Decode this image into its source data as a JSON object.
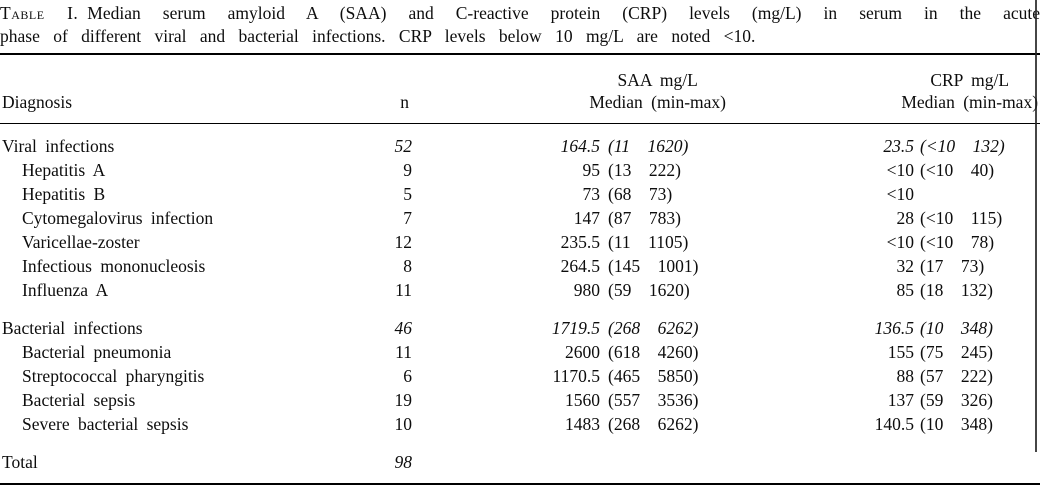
{
  "caption": {
    "label": "Table I.",
    "line1_rest": "Median serum amyloid A (SAA) and C-reactive protein (CRP) levels (mg/L) in serum in the acute",
    "line2": "phase of different viral and bacterial infections. CRP levels below 10 mg/L are noted <10."
  },
  "table": {
    "headers": {
      "diagnosis": "Diagnosis",
      "n": "n",
      "saa_unit": "SAA mg/L",
      "saa_stat": "Median (min-max)",
      "crp_unit": "CRP mg/L",
      "crp_stat": "Median (min-max)"
    },
    "rows": [
      {
        "kind": "section",
        "diagnosis": "Viral infections",
        "n": "52",
        "saa_median": "164.5",
        "saa_range": "(11 1620)",
        "crp_median": "23.5",
        "crp_range": "(<10 132)"
      },
      {
        "kind": "item",
        "diagnosis": "Hepatitis A",
        "n": "9",
        "saa_median": "95",
        "saa_range": "(13 222)",
        "crp_median": "<10",
        "crp_range": "(<10 40)"
      },
      {
        "kind": "item",
        "diagnosis": "Hepatitis B",
        "n": "5",
        "saa_median": "73",
        "saa_range": "(68 73)",
        "crp_median": "<10",
        "crp_range": ""
      },
      {
        "kind": "item",
        "diagnosis": "Cytomegalovirus infection",
        "n": "7",
        "saa_median": "147",
        "saa_range": "(87 783)",
        "crp_median": "28",
        "crp_range": "(<10 115)"
      },
      {
        "kind": "item",
        "diagnosis": "Varicellae-zoster",
        "n": "12",
        "saa_median": "235.5",
        "saa_range": "(11 1105)",
        "crp_median": "<10",
        "crp_range": "(<10 78)"
      },
      {
        "kind": "item",
        "diagnosis": "Infectious mononucleosis",
        "n": "8",
        "saa_median": "264.5",
        "saa_range": "(145 1001)",
        "crp_median": "32",
        "crp_range": "(17 73)"
      },
      {
        "kind": "item",
        "diagnosis": "Influenza A",
        "n": "11",
        "saa_median": "980",
        "saa_range": "(59 1620)",
        "crp_median": "85",
        "crp_range": "(18 132)"
      },
      {
        "kind": "section",
        "gap": true,
        "diagnosis": "Bacterial infections",
        "n": "46",
        "saa_median": "1719.5",
        "saa_range": "(268 6262)",
        "crp_median": "136.5",
        "crp_range": "(10 348)"
      },
      {
        "kind": "item",
        "diagnosis": "Bacterial pneumonia",
        "n": "11",
        "saa_median": "2600",
        "saa_range": "(618 4260)",
        "crp_median": "155",
        "crp_range": "(75 245)"
      },
      {
        "kind": "item",
        "diagnosis": "Streptococcal pharyngitis",
        "n": "6",
        "saa_median": "1170.5",
        "saa_range": "(465 5850)",
        "crp_median": "88",
        "crp_range": "(57 222)"
      },
      {
        "kind": "item",
        "diagnosis": "Bacterial sepsis",
        "n": "19",
        "saa_median": "1560",
        "saa_range": "(557 3536)",
        "crp_median": "137",
        "crp_range": "(59 326)"
      },
      {
        "kind": "item",
        "diagnosis": "Severe bacterial sepsis",
        "n": "10",
        "saa_median": "1483",
        "saa_range": "(268 6262)",
        "crp_median": "140.5",
        "crp_range": "(10 348)"
      },
      {
        "kind": "total",
        "gap": true,
        "diagnosis": "Total",
        "n": "98",
        "saa_median": "",
        "saa_range": "",
        "crp_median": "",
        "crp_range": ""
      }
    ]
  }
}
